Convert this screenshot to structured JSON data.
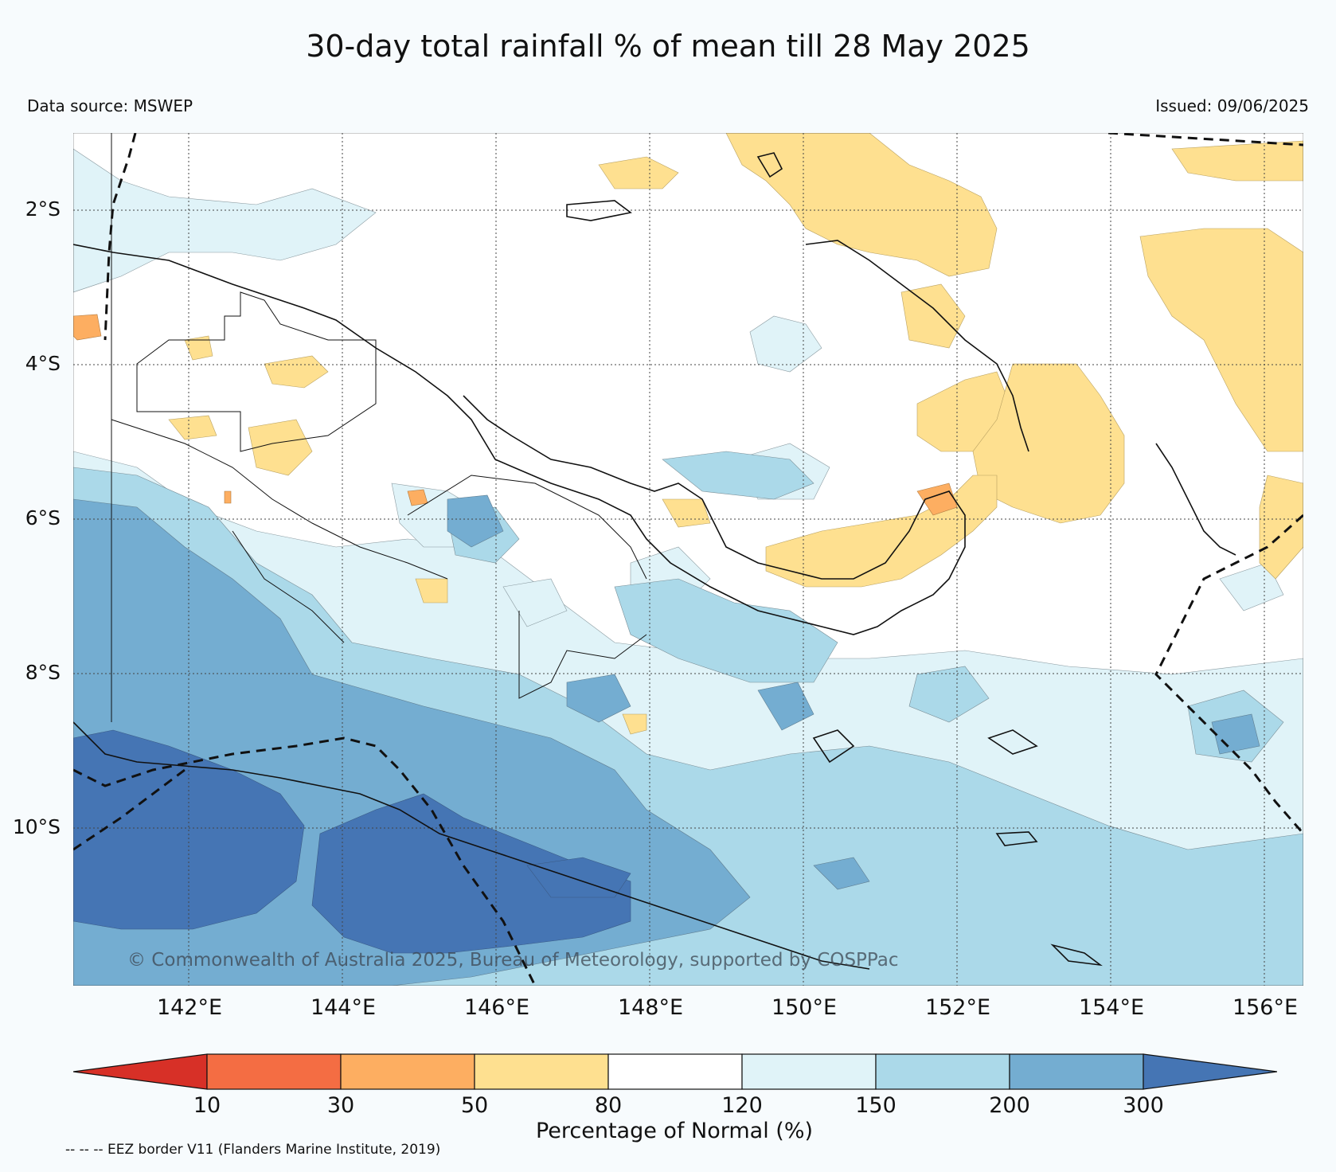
{
  "title": "30-day total rainfall % of mean till 28 May 2025",
  "data_source": "Data source: MSWEP",
  "issued": "Issued: 09/06/2025",
  "lat_labels": [
    "2°S",
    "4°S",
    "6°S",
    "8°S",
    "10°S"
  ],
  "lon_labels": [
    "142°E",
    "144°E",
    "146°E",
    "148°E",
    "150°E",
    "152°E",
    "154°E",
    "156°E"
  ],
  "credit": "© Commonwealth of Australia 2025, Bureau of Meteorology, supported by COSPPac",
  "colorbar": {
    "label": "Percentage of Normal (%)",
    "ticks": [
      "10",
      "30",
      "50",
      "80",
      "120",
      "150",
      "200",
      "300"
    ],
    "colors": {
      "below_10": "#d73027",
      "10_30": "#f46d43",
      "30_50": "#fdae61",
      "50_80": "#fee090",
      "80_120": "#ffffff",
      "120_150": "#e0f3f8",
      "150_200": "#abd9e9",
      "200_300": "#74add1",
      "above_300": "#4575b4"
    }
  },
  "eez_note": "-- -- -- EEZ border V11 (Flanders Marine Institute, 2019)"
}
